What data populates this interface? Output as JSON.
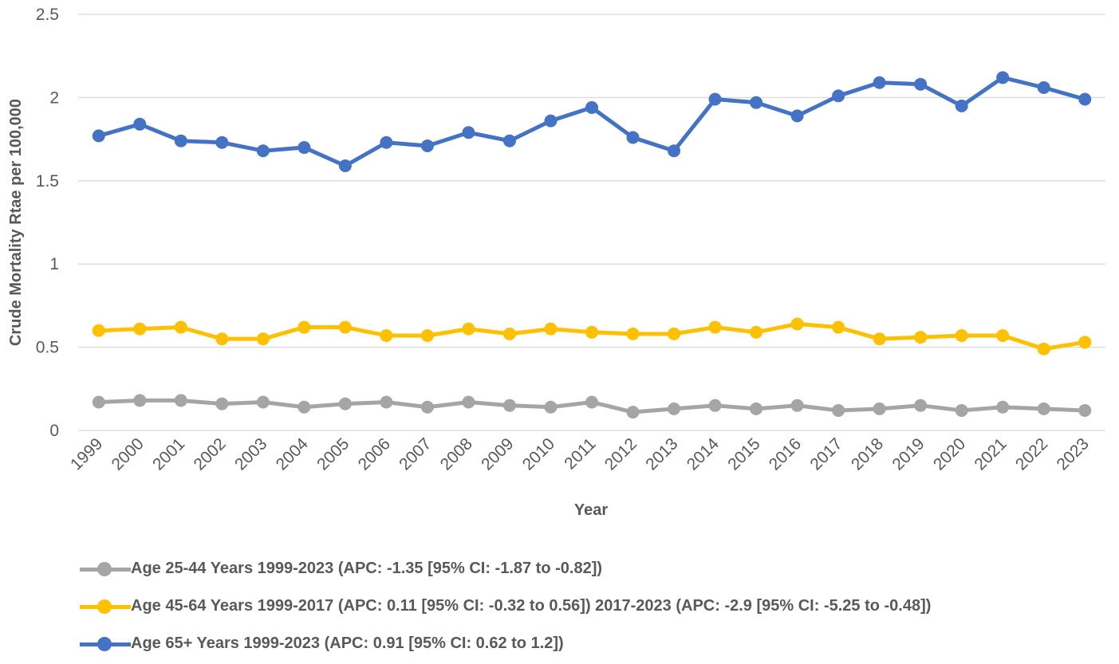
{
  "chart_data": {
    "type": "line",
    "xlabel": "Year",
    "ylabel": "Crude Mortality Rtae per 100,000",
    "ylim": [
      0,
      2.5
    ],
    "yticks": [
      "0",
      "0.5",
      "1",
      "1.5",
      "2",
      "2.5"
    ],
    "ytick_values": [
      0,
      0.5,
      1,
      1.5,
      2,
      2.5
    ],
    "grid": "horizontal",
    "legend_position": "bottom",
    "x": [
      "1999",
      "2000",
      "2001",
      "2002",
      "2003",
      "2004",
      "2005",
      "2006",
      "2007",
      "2008",
      "2009",
      "2010",
      "2011",
      "2012",
      "2013",
      "2014",
      "2015",
      "2016",
      "2017",
      "2018",
      "2019",
      "2020",
      "2021",
      "2022",
      "2023"
    ],
    "series": [
      {
        "name": "Age 25-44 Years 1999-2023 (APC: -1.35 [95% CI: -1.87 to -0.82])",
        "color": "#a5a5a5",
        "values": [
          0.17,
          0.18,
          0.18,
          0.16,
          0.17,
          0.14,
          0.16,
          0.17,
          0.14,
          0.17,
          0.15,
          0.14,
          0.17,
          0.11,
          0.13,
          0.15,
          0.13,
          0.15,
          0.12,
          0.13,
          0.15,
          0.12,
          0.14,
          0.13,
          0.12
        ]
      },
      {
        "name": "Age 45-64 Years 1999-2017 (APC: 0.11 [95% CI: -0.32 to 0.56]) 2017-2023 (APC: -2.9 [95% CI: -5.25 to -0.48])",
        "color": "#ffc000",
        "values": [
          0.6,
          0.61,
          0.62,
          0.55,
          0.55,
          0.62,
          0.62,
          0.57,
          0.57,
          0.61,
          0.58,
          0.61,
          0.59,
          0.58,
          0.58,
          0.62,
          0.59,
          0.64,
          0.62,
          0.55,
          0.56,
          0.57,
          0.57,
          0.49,
          0.53
        ]
      },
      {
        "name": "Age 65+ Years 1999-2023 (APC: 0.91 [95% CI: 0.62 to 1.2])",
        "color": "#4472c4",
        "values": [
          1.77,
          1.84,
          1.74,
          1.73,
          1.68,
          1.7,
          1.59,
          1.73,
          1.71,
          1.79,
          1.74,
          1.86,
          1.94,
          1.76,
          1.68,
          1.99,
          1.97,
          1.89,
          2.01,
          2.09,
          2.08,
          1.95,
          2.12,
          2.06,
          1.99
        ]
      }
    ]
  }
}
